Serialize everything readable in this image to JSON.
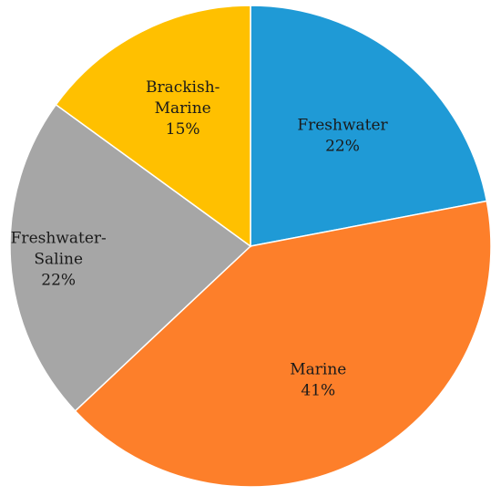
{
  "chart_data": {
    "type": "pie",
    "title": "",
    "start_angle_deg": 0,
    "direction": "clockwise",
    "slices": [
      {
        "name": "Freshwater",
        "value": 22,
        "value_label": "22%",
        "label_lines": [
          "Freshwater"
        ],
        "color": "#1f9ad6"
      },
      {
        "name": "Marine",
        "value": 41,
        "value_label": "41%",
        "label_lines": [
          "Marine"
        ],
        "color": "#fd7f2a"
      },
      {
        "name": "Freshwater-Saline",
        "value": 22,
        "value_label": "22%",
        "label_lines": [
          "Freshwater-",
          "Saline"
        ],
        "color": "#a6a6a6"
      },
      {
        "name": "Brackish-Marine",
        "value": 15,
        "value_label": "15%",
        "label_lines": [
          "Brackish-",
          "Marine"
        ],
        "color": "#ffc000"
      }
    ],
    "legend": "none"
  }
}
